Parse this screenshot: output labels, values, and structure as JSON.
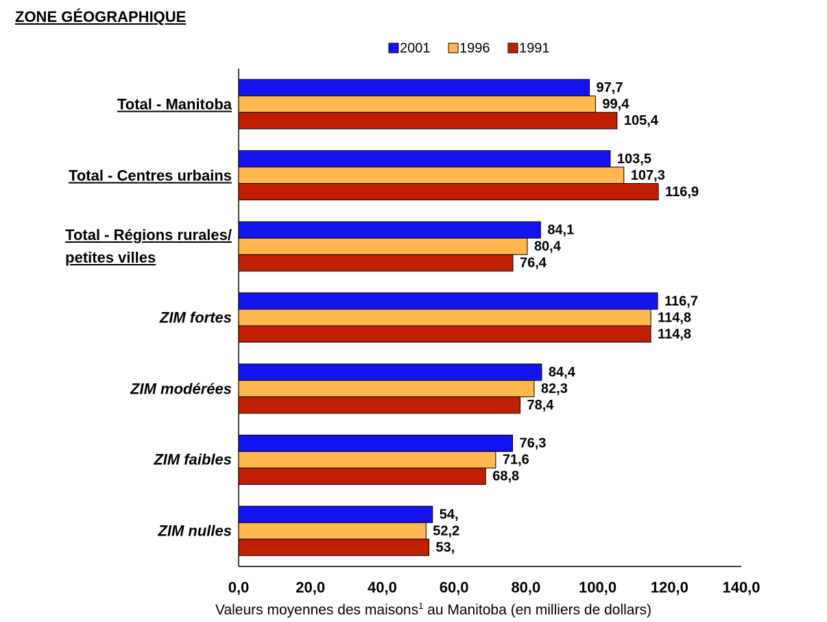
{
  "chart_data": {
    "type": "bar",
    "orientation": "horizontal",
    "title": "ZONE GÉOGRAPHIQUE",
    "x_label": [
      "Valeurs moyennes des maisons",
      "1",
      " au Manitoba (en milliers de dollars)"
    ],
    "categories": [
      "Total - Manitoba",
      "Total - Centres urbains",
      "Total - Régions rurales/\npetites villes",
      "ZIM fortes",
      "ZIM modérées",
      "ZIM faibles",
      "ZIM nulles"
    ],
    "series": [
      {
        "name": "2001",
        "color": "#1414f0",
        "values": [
          97.7,
          103.5,
          84.1,
          116.7,
          84.4,
          76.3,
          54
        ],
        "value_labels": [
          "97,7",
          "103,5",
          "84,1",
          "116,7",
          "84,4",
          "76,3",
          "54,"
        ]
      },
      {
        "name": "1996",
        "color": "#ffb84d",
        "values": [
          99.4,
          107.3,
          80.4,
          114.8,
          82.3,
          71.6,
          52.2
        ],
        "value_labels": [
          "99,4",
          "107,3",
          "80,4",
          "114,8",
          "82,3",
          "71,6",
          "52,2"
        ]
      },
      {
        "name": "1991",
        "color": "#c02000",
        "values": [
          105.4,
          116.9,
          76.4,
          114.8,
          78.4,
          68.8,
          53
        ],
        "value_labels": [
          "105,4",
          "116,9",
          "76,4",
          "114,8",
          "78,4",
          "68,8",
          "53,"
        ]
      }
    ],
    "xlim": [
      0,
      140
    ],
    "xticks": [
      {
        "value": 0,
        "label": "0,0"
      },
      {
        "value": 20,
        "label": "20,0"
      },
      {
        "value": 40,
        "label": "40,0"
      },
      {
        "value": 60,
        "label": "60,0"
      },
      {
        "value": 80,
        "label": "80,0"
      },
      {
        "value": 100,
        "label": "100,0"
      },
      {
        "value": 120,
        "label": "120,0"
      },
      {
        "value": 140,
        "label": "140,0"
      }
    ],
    "legend": "top",
    "grid": false
  }
}
